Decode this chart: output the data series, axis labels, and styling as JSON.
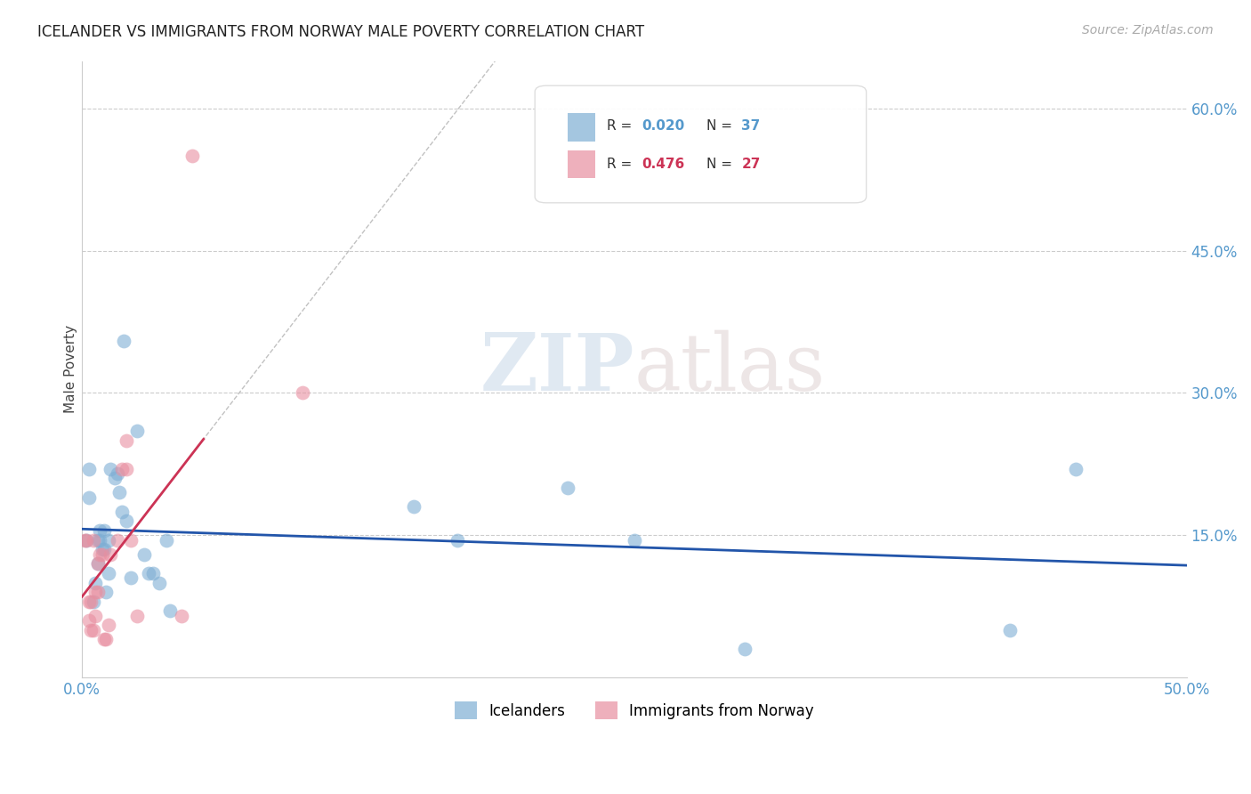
{
  "title": "ICELANDER VS IMMIGRANTS FROM NORWAY MALE POVERTY CORRELATION CHART",
  "source": "Source: ZipAtlas.com",
  "ylabel": "Male Poverty",
  "xlim": [
    0.0,
    0.5
  ],
  "ylim": [
    0.0,
    0.65
  ],
  "x_ticks": [
    0.0,
    0.1,
    0.2,
    0.3,
    0.4,
    0.5
  ],
  "x_tick_labels": [
    "0.0%",
    "",
    "",
    "",
    "",
    "50.0%"
  ],
  "y_ticks": [
    0.15,
    0.3,
    0.45,
    0.6
  ],
  "y_tick_labels": [
    "15.0%",
    "30.0%",
    "45.0%",
    "60.0%"
  ],
  "grid_color": "#cccccc",
  "background_color": "#ffffff",
  "watermark_zip": "ZIP",
  "watermark_atlas": "atlas",
  "legend_R1": "0.020",
  "legend_N1": "37",
  "legend_R2": "0.476",
  "legend_N2": "27",
  "icelanders_color": "#7eaed4",
  "norway_color": "#e88fa0",
  "icelanders_trend_color": "#2255aa",
  "norway_trend_color": "#cc3355",
  "icelanders_x": [
    0.002,
    0.003,
    0.003,
    0.005,
    0.006,
    0.007,
    0.007,
    0.008,
    0.008,
    0.009,
    0.01,
    0.01,
    0.011,
    0.012,
    0.012,
    0.013,
    0.015,
    0.016,
    0.017,
    0.018,
    0.019,
    0.02,
    0.022,
    0.025,
    0.028,
    0.03,
    0.032,
    0.035,
    0.038,
    0.04,
    0.15,
    0.17,
    0.22,
    0.25,
    0.3,
    0.42,
    0.45
  ],
  "icelanders_y": [
    0.145,
    0.22,
    0.19,
    0.08,
    0.1,
    0.145,
    0.12,
    0.145,
    0.155,
    0.135,
    0.135,
    0.155,
    0.09,
    0.145,
    0.11,
    0.22,
    0.21,
    0.215,
    0.195,
    0.175,
    0.355,
    0.165,
    0.105,
    0.26,
    0.13,
    0.11,
    0.11,
    0.1,
    0.145,
    0.07,
    0.18,
    0.145,
    0.2,
    0.145,
    0.03,
    0.05,
    0.22
  ],
  "norway_x": [
    0.001,
    0.002,
    0.003,
    0.003,
    0.004,
    0.004,
    0.005,
    0.005,
    0.006,
    0.006,
    0.007,
    0.007,
    0.008,
    0.009,
    0.01,
    0.011,
    0.012,
    0.013,
    0.016,
    0.018,
    0.02,
    0.02,
    0.022,
    0.025,
    0.045,
    0.05,
    0.1
  ],
  "norway_y": [
    0.145,
    0.145,
    0.06,
    0.08,
    0.08,
    0.05,
    0.05,
    0.145,
    0.065,
    0.09,
    0.09,
    0.12,
    0.13,
    0.13,
    0.04,
    0.04,
    0.055,
    0.13,
    0.145,
    0.22,
    0.22,
    0.25,
    0.145,
    0.065,
    0.065,
    0.55,
    0.3
  ]
}
